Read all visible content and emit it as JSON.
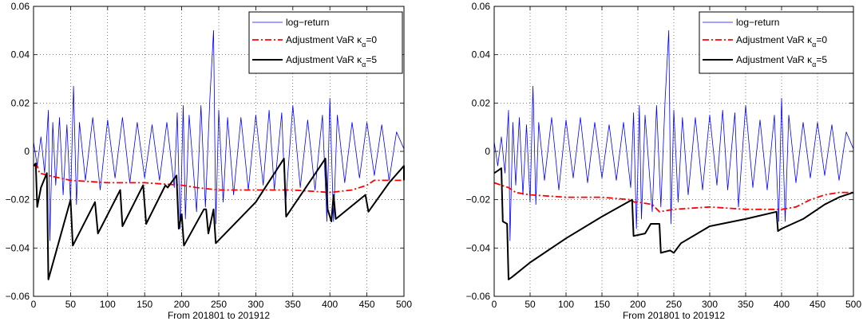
{
  "chart_data": [
    {
      "type": "line",
      "title": "",
      "xlabel": "From 201801 to 201912",
      "ylabel": "",
      "xlim": [
        0,
        500
      ],
      "ylim": [
        -0.06,
        0.06
      ],
      "xticks": [
        0,
        50,
        100,
        150,
        200,
        250,
        300,
        350,
        400,
        450,
        500
      ],
      "yticks": [
        -0.06,
        -0.04,
        -0.02,
        0,
        0.02,
        0.04,
        0.06
      ],
      "ytick_labels": [
        "−0.06",
        "−0.04",
        "−0.02",
        "0",
        "0.02",
        "0.04",
        "0.06"
      ],
      "grid": true,
      "legend_position": "top-right",
      "legend_items": [
        {
          "label": "log−return"
        },
        {
          "label": "Adjustment VaR κ",
          "sub": "α",
          "suffix": "=0"
        },
        {
          "label": "Adjustment VaR κ",
          "sub": "α",
          "suffix": "=5"
        }
      ],
      "series": [
        {
          "name": "log−return",
          "color": "#0000ff",
          "style": "solid",
          "description": "daily log-returns, 500 observations, mostly within ±0.02, spikes near x≈20, 54, 200, 243, 400",
          "points": [
            [
              0,
              0.004
            ],
            [
              5,
              -0.006
            ],
            [
              10,
              0.006
            ],
            [
              15,
              -0.009
            ],
            [
              20,
              0.017
            ],
            [
              22,
              -0.037
            ],
            [
              26,
              0.012
            ],
            [
              30,
              -0.014
            ],
            [
              35,
              0.014
            ],
            [
              40,
              -0.018
            ],
            [
              45,
              0.011
            ],
            [
              50,
              -0.021
            ],
            [
              54,
              0.027
            ],
            [
              58,
              -0.022
            ],
            [
              62,
              0.012
            ],
            [
              70,
              -0.012
            ],
            [
              80,
              0.014
            ],
            [
              90,
              -0.016
            ],
            [
              100,
              0.013
            ],
            [
              110,
              -0.011
            ],
            [
              120,
              0.014
            ],
            [
              130,
              -0.013
            ],
            [
              140,
              0.012
            ],
            [
              150,
              -0.011
            ],
            [
              160,
              0.011
            ],
            [
              170,
              -0.012
            ],
            [
              180,
              0.012
            ],
            [
              190,
              -0.015
            ],
            [
              194,
              0.016
            ],
            [
              198,
              -0.032
            ],
            [
              202,
              0.019
            ],
            [
              205,
              -0.028
            ],
            [
              210,
              0.015
            ],
            [
              220,
              -0.025
            ],
            [
              226,
              0.019
            ],
            [
              232,
              -0.023
            ],
            [
              238,
              0.022
            ],
            [
              243,
              0.05
            ],
            [
              246,
              -0.03
            ],
            [
              250,
              0.017
            ],
            [
              256,
              -0.021
            ],
            [
              262,
              0.014
            ],
            [
              270,
              -0.018
            ],
            [
              280,
              0.014
            ],
            [
              290,
              -0.016
            ],
            [
              300,
              0.015
            ],
            [
              310,
              -0.014
            ],
            [
              318,
              0.017
            ],
            [
              325,
              -0.016
            ],
            [
              335,
              0.016
            ],
            [
              340,
              -0.023
            ],
            [
              350,
              0.019
            ],
            [
              360,
              -0.015
            ],
            [
              370,
              0.013
            ],
            [
              380,
              -0.016
            ],
            [
              390,
              0.015
            ],
            [
              396,
              -0.029
            ],
            [
              400,
              0.022
            ],
            [
              405,
              -0.029
            ],
            [
              410,
              0.015
            ],
            [
              420,
              -0.013
            ],
            [
              430,
              0.012
            ],
            [
              440,
              -0.011
            ],
            [
              450,
              0.012
            ],
            [
              460,
              -0.01
            ],
            [
              470,
              0.011
            ],
            [
              480,
              -0.012
            ],
            [
              490,
              0.008
            ],
            [
              500,
              0.001
            ]
          ]
        },
        {
          "name": "Adjustment VaR κα=0",
          "color": "#ff0000",
          "style": "dash-dot",
          "points": [
            [
              0,
              -0.006
            ],
            [
              5,
              -0.006
            ],
            [
              8,
              -0.009
            ],
            [
              20,
              -0.01
            ],
            [
              50,
              -0.012
            ],
            [
              100,
              -0.013
            ],
            [
              150,
              -0.013
            ],
            [
              200,
              -0.014
            ],
            [
              220,
              -0.015
            ],
            [
              250,
              -0.016
            ],
            [
              300,
              -0.016
            ],
            [
              350,
              -0.016
            ],
            [
              400,
              -0.017
            ],
            [
              430,
              -0.016
            ],
            [
              450,
              -0.014
            ],
            [
              460,
              -0.012
            ],
            [
              500,
              -0.012
            ]
          ]
        },
        {
          "name": "Adjustment VaR κα=5",
          "color": "#000000",
          "style": "solid",
          "points": [
            [
              0,
              -0.006
            ],
            [
              3,
              -0.005
            ],
            [
              5,
              -0.023
            ],
            [
              10,
              -0.015
            ],
            [
              18,
              -0.009
            ],
            [
              20,
              -0.053
            ],
            [
              50,
              -0.02
            ],
            [
              53,
              -0.039
            ],
            [
              83,
              -0.021
            ],
            [
              87,
              -0.034
            ],
            [
              117,
              -0.016
            ],
            [
              120,
              -0.031
            ],
            [
              148,
              -0.014
            ],
            [
              152,
              -0.03
            ],
            [
              178,
              -0.014
            ],
            [
              181,
              -0.015
            ],
            [
              193,
              -0.01
            ],
            [
              196,
              -0.032
            ],
            [
              200,
              -0.026
            ],
            [
              203,
              -0.039
            ],
            [
              230,
              -0.024
            ],
            [
              233,
              -0.024
            ],
            [
              236,
              -0.034
            ],
            [
              243,
              -0.024
            ],
            [
              246,
              -0.038
            ],
            [
              300,
              -0.021
            ],
            [
              338,
              -0.003
            ],
            [
              341,
              -0.027
            ],
            [
              394,
              -0.003
            ],
            [
              397,
              -0.024
            ],
            [
              402,
              -0.029
            ],
            [
              405,
              -0.018
            ],
            [
              408,
              -0.028
            ],
            [
              448,
              -0.018
            ],
            [
              452,
              -0.025
            ],
            [
              480,
              -0.013
            ],
            [
              500,
              -0.006
            ],
            [
              500,
              -0.012
            ]
          ]
        }
      ]
    },
    {
      "type": "line",
      "title": "",
      "xlabel": "From 201801 to 201912",
      "ylabel": "",
      "xlim": [
        0,
        500
      ],
      "ylim": [
        -0.06,
        0.06
      ],
      "xticks": [
        0,
        50,
        100,
        150,
        200,
        250,
        300,
        350,
        400,
        450,
        500
      ],
      "yticks": [
        -0.06,
        -0.04,
        -0.02,
        0,
        0.02,
        0.04,
        0.06
      ],
      "ytick_labels": [
        "−0.06",
        "−0.04",
        "−0.02",
        "0",
        "0.02",
        "0.04",
        "0.06"
      ],
      "grid": true,
      "legend_position": "top-right",
      "legend_items": [
        {
          "label": "log−return"
        },
        {
          "label": "Adjustment VaR κ",
          "sub": "α",
          "suffix": "=0"
        },
        {
          "label": "Adjustment VaR κ",
          "sub": "α",
          "suffix": "=5"
        }
      ],
      "series": [
        {
          "name": "log−return",
          "color": "#0000ff",
          "style": "solid",
          "description": "same daily log-returns as left panel",
          "points": [
            [
              0,
              0.004
            ],
            [
              5,
              -0.006
            ],
            [
              10,
              0.006
            ],
            [
              15,
              -0.009
            ],
            [
              20,
              0.017
            ],
            [
              22,
              -0.037
            ],
            [
              26,
              0.012
            ],
            [
              30,
              -0.014
            ],
            [
              35,
              0.014
            ],
            [
              40,
              -0.018
            ],
            [
              45,
              0.011
            ],
            [
              50,
              -0.021
            ],
            [
              54,
              0.027
            ],
            [
              58,
              -0.022
            ],
            [
              62,
              0.012
            ],
            [
              70,
              -0.012
            ],
            [
              80,
              0.014
            ],
            [
              90,
              -0.016
            ],
            [
              100,
              0.013
            ],
            [
              110,
              -0.011
            ],
            [
              120,
              0.014
            ],
            [
              130,
              -0.013
            ],
            [
              140,
              0.012
            ],
            [
              150,
              -0.011
            ],
            [
              160,
              0.011
            ],
            [
              170,
              -0.012
            ],
            [
              180,
              0.012
            ],
            [
              190,
              -0.015
            ],
            [
              194,
              0.016
            ],
            [
              198,
              -0.032
            ],
            [
              202,
              0.019
            ],
            [
              205,
              -0.028
            ],
            [
              210,
              0.015
            ],
            [
              220,
              -0.025
            ],
            [
              226,
              0.019
            ],
            [
              232,
              -0.023
            ],
            [
              238,
              0.022
            ],
            [
              243,
              0.05
            ],
            [
              246,
              -0.03
            ],
            [
              250,
              0.017
            ],
            [
              256,
              -0.021
            ],
            [
              262,
              0.014
            ],
            [
              270,
              -0.018
            ],
            [
              280,
              0.014
            ],
            [
              290,
              -0.016
            ],
            [
              300,
              0.015
            ],
            [
              310,
              -0.014
            ],
            [
              318,
              0.017
            ],
            [
              325,
              -0.016
            ],
            [
              335,
              0.016
            ],
            [
              340,
              -0.023
            ],
            [
              350,
              0.019
            ],
            [
              360,
              -0.015
            ],
            [
              370,
              0.013
            ],
            [
              380,
              -0.016
            ],
            [
              390,
              0.015
            ],
            [
              396,
              -0.029
            ],
            [
              400,
              0.022
            ],
            [
              405,
              -0.029
            ],
            [
              410,
              0.015
            ],
            [
              420,
              -0.013
            ],
            [
              430,
              0.012
            ],
            [
              440,
              -0.011
            ],
            [
              450,
              0.012
            ],
            [
              460,
              -0.01
            ],
            [
              470,
              0.011
            ],
            [
              480,
              -0.012
            ],
            [
              490,
              0.008
            ],
            [
              500,
              0.001
            ]
          ]
        },
        {
          "name": "Adjustment VaR κα=0",
          "color": "#ff0000",
          "style": "dash-dot",
          "points": [
            [
              0,
              -0.013
            ],
            [
              10,
              -0.014
            ],
            [
              20,
              -0.015
            ],
            [
              30,
              -0.017
            ],
            [
              50,
              -0.018
            ],
            [
              100,
              -0.019
            ],
            [
              150,
              -0.019
            ],
            [
              190,
              -0.02
            ],
            [
              195,
              -0.021
            ],
            [
              200,
              -0.021
            ],
            [
              220,
              -0.022
            ],
            [
              230,
              -0.025
            ],
            [
              250,
              -0.024
            ],
            [
              300,
              -0.023
            ],
            [
              350,
              -0.024
            ],
            [
              400,
              -0.024
            ],
            [
              420,
              -0.023
            ],
            [
              440,
              -0.02
            ],
            [
              460,
              -0.018
            ],
            [
              480,
              -0.017
            ],
            [
              500,
              -0.017
            ]
          ]
        },
        {
          "name": "Adjustment VaR κα=5",
          "color": "#000000",
          "style": "solid",
          "points": [
            [
              0,
              -0.009
            ],
            [
              5,
              -0.008
            ],
            [
              10,
              -0.007
            ],
            [
              12,
              -0.029
            ],
            [
              18,
              -0.03
            ],
            [
              20,
              -0.053
            ],
            [
              25,
              -0.052
            ],
            [
              50,
              -0.046
            ],
            [
              100,
              -0.036
            ],
            [
              150,
              -0.027
            ],
            [
              192,
              -0.02
            ],
            [
              194,
              -0.035
            ],
            [
              210,
              -0.034
            ],
            [
              218,
              -0.03
            ],
            [
              230,
              -0.03
            ],
            [
              232,
              -0.042
            ],
            [
              245,
              -0.041
            ],
            [
              250,
              -0.042
            ],
            [
              260,
              -0.038
            ],
            [
              300,
              -0.031
            ],
            [
              350,
              -0.028
            ],
            [
              393,
              -0.025
            ],
            [
              395,
              -0.033
            ],
            [
              400,
              -0.032
            ],
            [
              430,
              -0.028
            ],
            [
              460,
              -0.022
            ],
            [
              480,
              -0.019
            ],
            [
              500,
              -0.017
            ]
          ]
        }
      ]
    }
  ]
}
